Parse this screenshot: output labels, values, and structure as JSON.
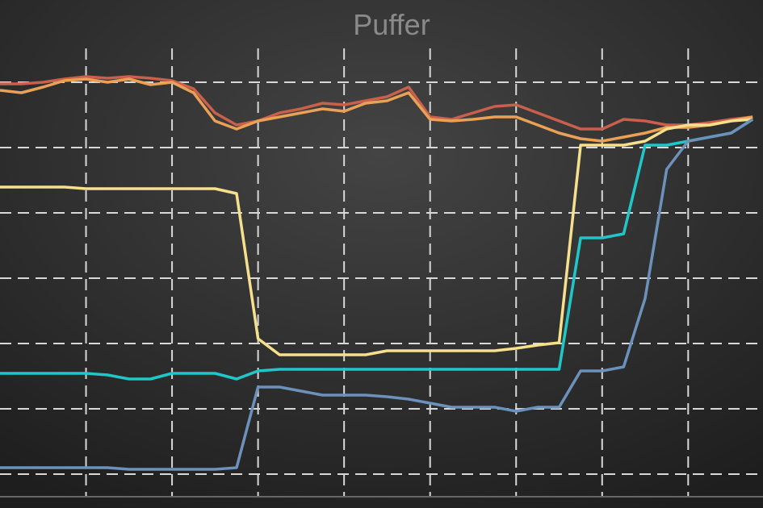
{
  "chart_data": {
    "type": "line",
    "title": "Puffer",
    "x": [
      0,
      0.25,
      0.5,
      0.75,
      1,
      1.25,
      1.5,
      1.75,
      2,
      2.25,
      2.5,
      2.75,
      3,
      3.25,
      3.5,
      3.75,
      4,
      4.25,
      4.5,
      4.75,
      5,
      5.25,
      5.5,
      5.75,
      6,
      6.25,
      6.5,
      6.75,
      7,
      7.25,
      7.5,
      7.75,
      8,
      8.25,
      8.5,
      8.75
    ],
    "xlim": [
      0,
      8.87
    ],
    "xticks": [
      1,
      2,
      3,
      4,
      5,
      6,
      7,
      8
    ],
    "ylim": [
      -42,
      588
    ],
    "yticks": [
      0,
      81,
      162,
      243,
      324,
      405,
      486
    ],
    "grid": true,
    "series": [
      {
        "color": "#c9604c",
        "values": [
          484,
          484,
          486,
          490,
          493,
          491,
          493,
          491,
          488,
          478,
          448,
          433,
          438,
          448,
          453,
          460,
          458,
          463,
          468,
          480,
          443,
          440,
          448,
          456,
          458,
          448,
          438,
          428,
          428,
          440,
          438,
          433,
          433,
          436,
          440,
          443
        ]
      },
      {
        "color": "#eba155",
        "values": [
          476,
          473,
          480,
          488,
          490,
          486,
          490,
          483,
          486,
          473,
          438,
          428,
          438,
          443,
          448,
          453,
          450,
          460,
          463,
          473,
          440,
          438,
          440,
          443,
          443,
          433,
          423,
          416,
          413,
          418,
          423,
          430,
          430,
          433,
          438,
          443
        ]
      },
      {
        "color": "#f6e08c",
        "values": [
          356,
          356,
          356,
          356,
          354,
          354,
          354,
          354,
          354,
          354,
          354,
          348,
          168,
          148,
          148,
          148,
          148,
          148,
          153,
          153,
          153,
          153,
          153,
          153,
          156,
          160,
          163,
          408,
          408,
          408,
          413,
          428,
          433,
          433,
          438,
          440
        ]
      },
      {
        "color": "#1fc7c9",
        "values": [
          125,
          125,
          125,
          125,
          125,
          123,
          118,
          118,
          125,
          125,
          125,
          118,
          128,
          130,
          130,
          130,
          130,
          130,
          130,
          130,
          130,
          130,
          130,
          130,
          130,
          130,
          130,
          293,
          293,
          298,
          408,
          408,
          413,
          418,
          423,
          440
        ]
      },
      {
        "color": "#6c91ba",
        "values": [
          8,
          8,
          8,
          8,
          8,
          8,
          6,
          6,
          6,
          6,
          6,
          8,
          108,
          108,
          103,
          98,
          98,
          98,
          96,
          93,
          88,
          83,
          83,
          83,
          78,
          83,
          83,
          128,
          128,
          133,
          218,
          378,
          413,
          418,
          423,
          440
        ]
      }
    ]
  }
}
